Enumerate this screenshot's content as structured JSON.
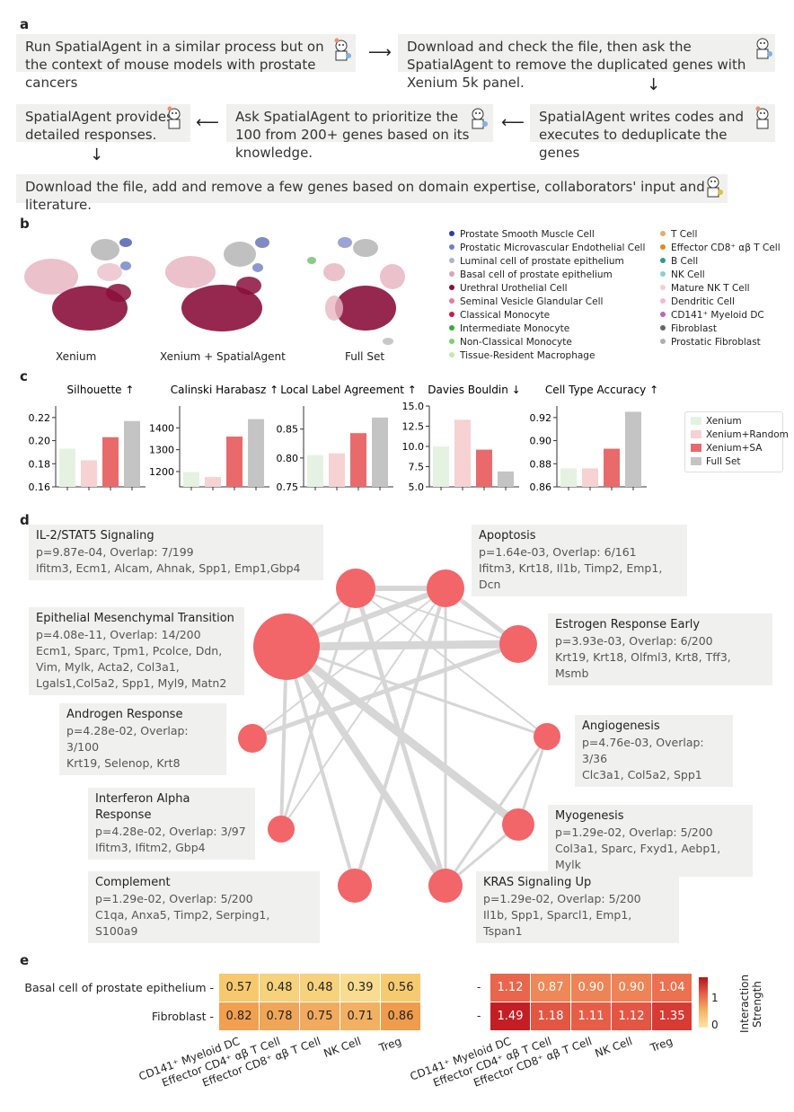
{
  "panel_a": {
    "label": "a",
    "box1": "Run SpatialAgent in a similar process but on the context of mouse models with prostate cancers",
    "box2": "Download and check the file, then ask the SpatialAgent to remove the duplicated genes with Xenium 5k panel.",
    "box3": "SpatialAgent writes codes and executes to deduplicate the genes",
    "box4": "Ask SpatialAgent to prioritize the 100 from 200+ genes based on its knowledge.",
    "box5": "SpatialAgent provides detailed responses.",
    "box6": "Download the file, add and remove a few genes based on domain expertise, collaborators' input and literature."
  },
  "panel_b": {
    "label": "b",
    "umap_titles": [
      "Xenium",
      "Xenium + SpatialAgent",
      "Full Set"
    ],
    "legend_col1": [
      {
        "name": "Prostate Smooth Muscle Cell",
        "color": "#2c3e9c"
      },
      {
        "name": "Prostatic Microvascular Endothelial Cell",
        "color": "#6f7fc4"
      },
      {
        "name": "Luminal cell of prostate epithelium",
        "color": "#a8b4d8"
      },
      {
        "name": "Basal cell of prostate epithelium",
        "color": "#d8a6b4"
      },
      {
        "name": "Urethral Urothelial Cell",
        "color": "#8b0f3c"
      },
      {
        "name": "Seminal Vesicle Glandular Cell",
        "color": "#e07f9e"
      },
      {
        "name": "Classical Monocyte",
        "color": "#c81e48"
      },
      {
        "name": "Intermediate Monocyte",
        "color": "#3aaa3a"
      },
      {
        "name": "Non-Classical Monocyte",
        "color": "#7ecf6a"
      },
      {
        "name": "Tissue-Resident Macrophage",
        "color": "#c8e6b0"
      }
    ],
    "legend_col2": [
      {
        "name": "T Cell",
        "color": "#e8a870"
      },
      {
        "name": "Effector CD8⁺ αβ T Cell",
        "color": "#e08c1c"
      },
      {
        "name": "B Cell",
        "color": "#2a9a9a"
      },
      {
        "name": "NK Cell",
        "color": "#8ad0d0"
      },
      {
        "name": "Mature NK T Cell",
        "color": "#f3cfd8"
      },
      {
        "name": "Dendritic Cell",
        "color": "#f0b8d0"
      },
      {
        "name": "CD141⁺ Myeloid DC",
        "color": "#b868b8"
      },
      {
        "name": "Fibroblast",
        "color": "#666666"
      },
      {
        "name": "Prostatic Fibroblast",
        "color": "#b0b0b0"
      }
    ]
  },
  "panel_c": {
    "label": "c",
    "chart_data": [
      {
        "type": "bar",
        "title": "Silhouette ↑",
        "categories": [
          "Xenium",
          "Xenium+Random",
          "Xenium+SA",
          "Full Set"
        ],
        "values": [
          0.193,
          0.183,
          0.203,
          0.217
        ],
        "ylim": [
          0.16,
          0.23
        ],
        "ticks": [
          "0.16",
          "0.18",
          "0.20",
          "0.22"
        ],
        "tickvals": [
          0.16,
          0.18,
          0.2,
          0.22
        ]
      },
      {
        "type": "bar",
        "title": "Calinski Harabasz ↑",
        "categories": [
          "Xenium",
          "Xenium+Random",
          "Xenium+SA",
          "Full Set"
        ],
        "values": [
          1198,
          1175,
          1360,
          1440
        ],
        "ylim": [
          1130,
          1500
        ],
        "ticks": [
          "1200",
          "1300",
          "1400"
        ],
        "tickvals": [
          1200,
          1300,
          1400
        ]
      },
      {
        "type": "bar",
        "title": "Local Label Agreement ↑",
        "categories": [
          "Xenium",
          "Xenium+Random",
          "Xenium+SA",
          "Full Set"
        ],
        "values": [
          0.805,
          0.808,
          0.843,
          0.87
        ],
        "ylim": [
          0.75,
          0.89
        ],
        "ticks": [
          "0.75",
          "0.80",
          "0.85"
        ],
        "tickvals": [
          0.75,
          0.8,
          0.85
        ]
      },
      {
        "type": "bar",
        "title": "Davies Bouldin ↓",
        "categories": [
          "Xenium",
          "Xenium+Random",
          "Xenium+SA",
          "Full Set"
        ],
        "values": [
          10.0,
          13.3,
          9.6,
          6.9
        ],
        "ylim": [
          5.0,
          15.0
        ],
        "ticks": [
          "5.0",
          "7.5",
          "10.0",
          "12.5",
          "15.0"
        ],
        "tickvals": [
          5.0,
          7.5,
          10.0,
          12.5,
          15.0
        ]
      },
      {
        "type": "bar",
        "title": "Cell Type Accuracy ↑",
        "categories": [
          "Xenium",
          "Xenium+Random",
          "Xenium+SA",
          "Full Set"
        ],
        "values": [
          0.876,
          0.876,
          0.893,
          0.925
        ],
        "ylim": [
          0.86,
          0.93
        ],
        "ticks": [
          "0.86",
          "0.88",
          "0.90",
          "0.92"
        ],
        "tickvals": [
          0.86,
          0.88,
          0.9,
          0.92
        ]
      }
    ],
    "legend": [
      {
        "name": "Xenium",
        "color": "#e5f2e1"
      },
      {
        "name": "Xenium+Random",
        "color": "#f6d2d2"
      },
      {
        "name": "Xenium+SA",
        "color": "#e96a6a"
      },
      {
        "name": "Full Set",
        "color": "#c4c4c4"
      }
    ]
  },
  "panel_d": {
    "label": "d",
    "nodes": [
      {
        "title": "IL-2/STAT5 Signaling",
        "stats": "p=9.87e-04, Overlap: 7/199",
        "genes": "Ifitm3, Ecm1, Alcam, Ahnak, Spp1, Emp1,Gbp4",
        "size": 7
      },
      {
        "title": "Apoptosis",
        "stats": "p=1.64e-03, Overlap: 6/161",
        "genes": "Ifitm3, Krt18, Il1b, Timp2, Emp1, Dcn",
        "size": 6
      },
      {
        "title": "Epithelial Mesenchymal Transition",
        "stats": "p=4.08e-11, Overlap: 14/200",
        "genes": "Ecm1, Sparc, Tpm1, Pcolce, Ddn, Vim, Mylk, Acta2, Col3a1, Lgals1,Col5a2, Spp1, Myl9, Matn2",
        "size": 14
      },
      {
        "title": "Estrogen Response Early",
        "stats": "p=3.93e-03, Overlap: 6/200",
        "genes": "Krt19, Krt18, Olfml3, Krt8, Tff3, Msmb",
        "size": 6
      },
      {
        "title": "Androgen Response",
        "stats": "p=4.28e-02, Overlap: 3/100",
        "genes": "Krt19, Selenop, Krt8",
        "size": 3
      },
      {
        "title": "Angiogenesis",
        "stats": "p=4.76e-03, Overlap: 3/36",
        "genes": "Clc3a1, Col5a2, Spp1",
        "size": 3
      },
      {
        "title": "Interferon Alpha Response",
        "stats": "p=4.28e-02, Overlap: 3/97",
        "genes": "Ifitm3, Ifitm2, Gbp4",
        "size": 3
      },
      {
        "title": "Myogenesis",
        "stats": "p=1.29e-02, Overlap: 5/200",
        "genes": "Col3a1, Sparc, Fxyd1, Aebp1, Mylk",
        "size": 5
      },
      {
        "title": "Complement",
        "stats": "p=1.29e-02, Overlap: 5/200",
        "genes": "C1qa, Anxa5, Timp2, Serping1, S100a9",
        "size": 5
      },
      {
        "title": "KRAS Signaling Up",
        "stats": "p=1.29e-02, Overlap: 5/200",
        "genes": "Il1b, Spp1, Sparcl1, Emp1, Tspan1",
        "size": 5
      }
    ]
  },
  "panel_e": {
    "label": "e",
    "rows": [
      "Basal cell of prostate epithelium",
      "Fibroblast"
    ],
    "cols": [
      "CD141⁺ Myeloid DC",
      "Effector CD4⁺ αβ T Cell",
      "Effector CD8⁺ αβ T Cell",
      "NK Cell",
      "Treg"
    ],
    "left_values": [
      [
        "0.57",
        "0.48",
        "0.48",
        "0.39",
        "0.56"
      ],
      [
        "0.82",
        "0.78",
        "0.75",
        "0.71",
        "0.86"
      ]
    ],
    "right_values": [
      [
        "1.12",
        "0.87",
        "0.90",
        "0.90",
        "1.04"
      ],
      [
        "1.49",
        "1.18",
        "1.11",
        "1.12",
        "1.35"
      ]
    ],
    "colorbar_label": "Interaction Strength",
    "colorbar_ticks": [
      "1",
      "0"
    ]
  }
}
